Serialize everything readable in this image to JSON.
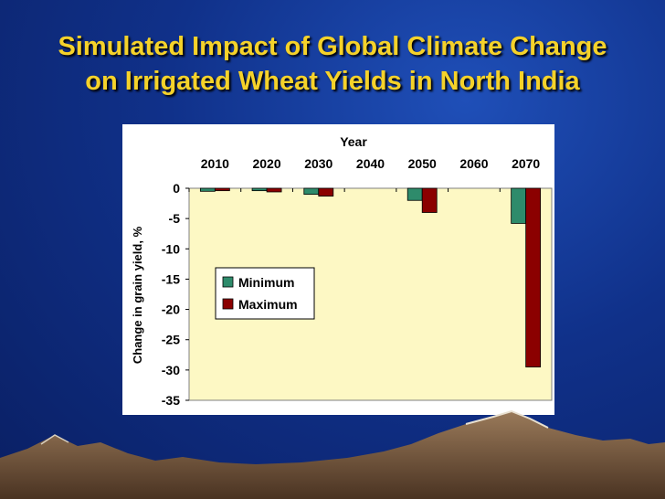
{
  "slide": {
    "title_line1": "Simulated Impact of Global Climate Change",
    "title_line2": "on Irrigated Wheat Yields in North India"
  },
  "colors": {
    "title": "#f5d22a",
    "plot_bg": "#fdf8c4",
    "minimum": "#2e8b6b",
    "maximum": "#8b0000"
  },
  "chart_data": {
    "type": "bar",
    "title": "",
    "xlabel": "Year",
    "ylabel": "Change in grain yield, %",
    "categories": [
      "2010",
      "2020",
      "2030",
      "2040",
      "2050",
      "2060",
      "2070"
    ],
    "series": [
      {
        "name": "Minimum",
        "values": [
          -0.5,
          -0.4,
          -1.0,
          null,
          -2.0,
          null,
          -5.8
        ]
      },
      {
        "name": "Maximum",
        "values": [
          -0.4,
          -0.6,
          -1.3,
          null,
          -4.0,
          null,
          -29.5
        ]
      }
    ],
    "ylim": [
      -35,
      0
    ],
    "yticks": [
      "0",
      "-5",
      "-10",
      "-15",
      "-20",
      "-25",
      "-30",
      "-35"
    ],
    "x_axis_position": "top",
    "legend_position": "upper-left inside plot",
    "grid": false
  }
}
